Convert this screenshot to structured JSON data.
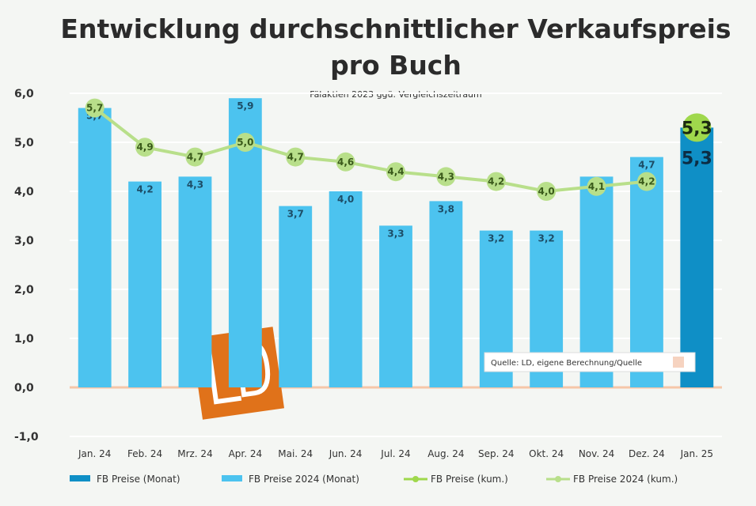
{
  "chart_data": {
    "type": "bar",
    "title_line1": "Entwicklung durchschnittlicher Verkaufspreis",
    "title_line2": "pro Buch",
    "subtitle": "Fälaktien 2023 ggü. Vergleichszeitraum",
    "categories": [
      "Jan. 24",
      "Feb. 24",
      "Mrz. 24",
      "Apr. 24",
      "Mai. 24",
      "Jun. 24",
      "Jul. 24",
      "Aug. 24",
      "Sep. 24",
      "Okt. 24",
      "Nov. 24",
      "Dez. 24",
      "Jan. 25"
    ],
    "ylim": [
      -1.0,
      6.0
    ],
    "yticks": [
      "-1,0",
      "0,0",
      "1,0",
      "2,0",
      "3,0",
      "4,0",
      "5,0",
      "6,0"
    ],
    "grid": true,
    "legend_position": "bottom",
    "series": [
      {
        "name": "FB Preise (Monat)",
        "kind": "bar",
        "color": "#0f8fc6",
        "values": [
          null,
          null,
          null,
          null,
          null,
          null,
          null,
          null,
          null,
          null,
          null,
          null,
          5.3
        ],
        "labels": [
          "",
          "",
          "",
          "",
          "",
          "",
          "",
          "",
          "",
          "",
          "",
          "",
          "5,3"
        ]
      },
      {
        "name": "FB Preise 2024 (Monat)",
        "kind": "bar",
        "color": "#4cc3ef",
        "values": [
          5.7,
          4.2,
          4.3,
          5.9,
          3.7,
          4.0,
          3.3,
          3.8,
          3.2,
          3.2,
          4.3,
          4.7,
          null
        ],
        "labels": [
          "5,7",
          "4,2",
          "4,3",
          "5,9",
          "3,7",
          "4,0",
          "3,3",
          "3,8",
          "3,2",
          "3,2",
          "4,3",
          "4,7",
          ""
        ]
      },
      {
        "name": "FB Preise (kum.)",
        "kind": "line",
        "color": "#9fd84c",
        "values": [
          null,
          null,
          null,
          null,
          null,
          null,
          null,
          null,
          null,
          null,
          null,
          null,
          5.3
        ],
        "labels": [
          "",
          "",
          "",
          "",
          "",
          "",
          "",
          "",
          "",
          "",
          "",
          "",
          "5,3"
        ]
      },
      {
        "name": "FB Preise 2024 (kum.)",
        "kind": "line",
        "color": "#b8df8a",
        "values": [
          5.7,
          4.9,
          4.7,
          5.0,
          4.7,
          4.6,
          4.4,
          4.3,
          4.2,
          4.0,
          4.1,
          4.2,
          null
        ],
        "labels": [
          "5,7",
          "4,9",
          "4,7",
          "5,0",
          "4,7",
          "4,6",
          "4,4",
          "4,3",
          "4,2",
          "4,0",
          "4,1",
          "4,2",
          ""
        ]
      }
    ],
    "source": "Quelle: LD, eigene Berechnung/Quelle",
    "logo_text": "LD"
  }
}
